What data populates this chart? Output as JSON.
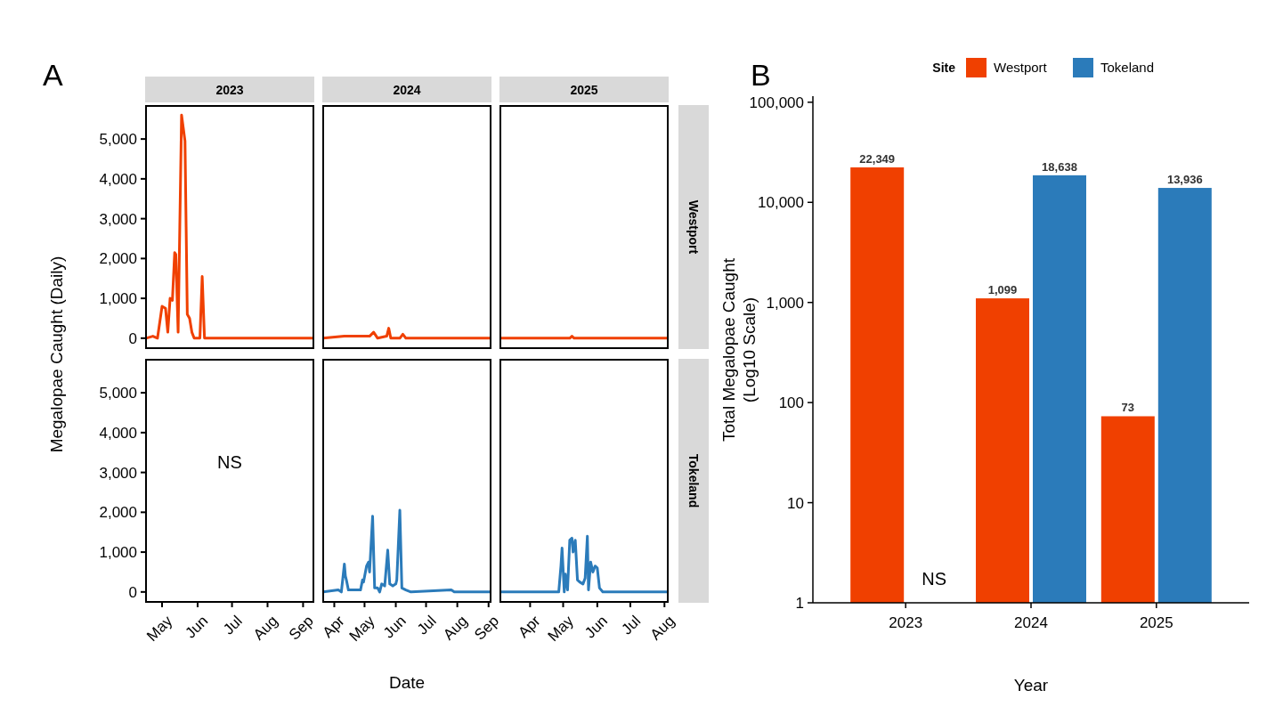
{
  "chart_data": [
    {
      "type": "line",
      "title": "2023",
      "ylabel": "Megalopae Caught (Daily)",
      "annotations": [
        "A"
      ],
      "xlim": [
        "2023-04-17",
        "2023-09-10"
      ],
      "ylim": [
        -250,
        5830
      ],
      "yticks": [
        0,
        {
          "value": 1000,
          "label": "1,000"
        },
        {
          "value": 2000,
          "label": "2,000"
        },
        {
          "value": 3000,
          "label": "3,000"
        },
        {
          "value": 4000,
          "label": "4,000"
        },
        {
          "value": 5000,
          "label": "5,000"
        }
      ],
      "tick_labels": "y",
      "x": [
        "2023-04-17",
        "2023-04-23",
        "2023-04-27",
        "2023-05-01",
        "2023-05-04",
        "2023-05-06",
        "2023-05-08",
        "2023-05-10",
        "2023-05-12",
        "2023-05-13",
        "2023-05-15",
        "2023-05-18",
        "2023-05-21",
        "2023-05-23",
        "2023-05-25",
        "2023-05-27",
        "2023-05-29",
        "2023-06-03",
        "2023-06-05",
        "2023-06-07",
        "2023-09-10"
      ],
      "series": [
        {
          "color": "#f04000",
          "values": [
            0,
            50,
            0,
            800,
            750,
            150,
            1000,
            950,
            2150,
            2100,
            150,
            5600,
            4950,
            600,
            500,
            150,
            0,
            0,
            1550,
            0,
            0
          ]
        }
      ]
    },
    {
      "type": "line",
      "title": "2024",
      "xlim": [
        "2024-03-21",
        "2024-09-03"
      ],
      "ylim": [
        -250,
        5830
      ],
      "tick_labels": false,
      "x": [
        "2024-03-21",
        "2024-04-11",
        "2024-05-06",
        "2024-05-10",
        "2024-05-14",
        "2024-05-23",
        "2024-05-25",
        "2024-05-27",
        "2024-06-05",
        "2024-06-08",
        "2024-06-11",
        "2024-09-03"
      ],
      "series": [
        {
          "color": "#f04000",
          "values": [
            0,
            50,
            50,
            150,
            0,
            50,
            250,
            0,
            0,
            100,
            0,
            0
          ]
        }
      ]
    },
    {
      "type": "line",
      "title": "2025",
      "xlim": [
        "2025-03-05",
        "2025-08-04"
      ],
      "ylim": [
        -250,
        5830
      ],
      "tick_labels": false,
      "x": [
        "2025-03-05",
        "2025-05-07",
        "2025-05-09",
        "2025-05-11",
        "2025-08-04"
      ],
      "series": [
        {
          "name": "Westport",
          "color": "#f04000",
          "values": [
            0,
            0,
            50,
            0,
            0
          ]
        }
      ]
    },
    {
      "type": "line",
      "annotations": [
        "NS"
      ],
      "xlim": [
        "2023-04-17",
        "2023-09-10"
      ],
      "ylim": [
        -250,
        5830
      ],
      "xticks": [
        {
          "value": "2023-05-01",
          "label": "May"
        },
        {
          "value": "2023-06-01",
          "label": "Jun"
        },
        {
          "value": "2023-07-01",
          "label": "Jul"
        },
        {
          "value": "2023-08-01",
          "label": "Aug"
        },
        {
          "value": "2023-09-01",
          "label": "Sep"
        }
      ],
      "yticks": [
        0,
        {
          "value": 1000,
          "label": "1,000"
        },
        {
          "value": 2000,
          "label": "2,000"
        },
        {
          "value": 3000,
          "label": "3,000"
        },
        {
          "value": 4000,
          "label": "4,000"
        },
        {
          "value": 5000,
          "label": "5,000"
        }
      ]
    },
    {
      "type": "line",
      "xlabel": "Date",
      "xlim": [
        "2024-03-21",
        "2024-09-03"
      ],
      "ylim": [
        -250,
        5830
      ],
      "tick_labels": "x",
      "xticks": [
        {
          "value": "2024-04-01",
          "label": "Apr"
        },
        {
          "value": "2024-05-01",
          "label": "May"
        },
        {
          "value": "2024-06-01",
          "label": "Jun"
        },
        {
          "value": "2024-07-01",
          "label": "Jul"
        },
        {
          "value": "2024-08-01",
          "label": "Aug"
        },
        {
          "value": "2024-09-01",
          "label": "Sep"
        }
      ],
      "x": [
        "2024-03-21",
        "2024-04-05",
        "2024-04-08",
        "2024-04-11",
        "2024-04-12",
        "2024-04-13",
        "2024-04-15",
        "2024-04-27",
        "2024-04-29",
        "2024-04-30",
        "2024-05-03",
        "2024-05-05",
        "2024-05-06",
        "2024-05-09",
        "2024-05-11",
        "2024-05-14",
        "2024-05-16",
        "2024-05-18",
        "2024-05-21",
        "2024-05-24",
        "2024-05-26",
        "2024-05-29",
        "2024-06-01",
        "2024-06-02",
        "2024-06-05",
        "2024-06-07",
        "2024-06-11",
        "2024-06-16",
        "2024-07-26",
        "2024-07-29",
        "2024-09-03"
      ],
      "series": [
        {
          "color": "#2b7bba",
          "values": [
            0,
            50,
            0,
            700,
            400,
            300,
            50,
            50,
            300,
            250,
            650,
            750,
            500,
            1900,
            100,
            100,
            0,
            200,
            150,
            1050,
            200,
            150,
            200,
            300,
            2050,
            100,
            50,
            0,
            50,
            0,
            0
          ]
        }
      ]
    },
    {
      "type": "line",
      "xlim": [
        "2025-03-05",
        "2025-08-04"
      ],
      "ylim": [
        -250,
        5830
      ],
      "tick_labels": "x",
      "xticks": [
        {
          "value": "2025-04-01",
          "label": "Apr"
        },
        {
          "value": "2025-05-01",
          "label": "May"
        },
        {
          "value": "2025-06-01",
          "label": "Jun"
        },
        {
          "value": "2025-07-01",
          "label": "Jul"
        },
        {
          "value": "2025-08-01",
          "label": "Aug"
        }
      ],
      "x": [
        "2025-03-05",
        "2025-04-16",
        "2025-04-27",
        "2025-04-29",
        "2025-04-30",
        "2025-05-02",
        "2025-05-03",
        "2025-05-05",
        "2025-05-07",
        "2025-05-09",
        "2025-05-10",
        "2025-05-12",
        "2025-05-14",
        "2025-05-16",
        "2025-05-19",
        "2025-05-21",
        "2025-05-23",
        "2025-05-24",
        "2025-05-26",
        "2025-05-28",
        "2025-05-30",
        "2025-06-01",
        "2025-06-03",
        "2025-06-06",
        "2025-08-04"
      ],
      "series": [
        {
          "name": "Tokeland",
          "color": "#2b7bba",
          "values": [
            0,
            0,
            0,
            650,
            1100,
            0,
            450,
            50,
            1300,
            1350,
            1000,
            1300,
            300,
            250,
            200,
            350,
            1400,
            50,
            750,
            500,
            650,
            600,
            100,
            0,
            0
          ]
        }
      ]
    },
    {
      "type": "bar",
      "xlabel": "Year",
      "ylabel": "Total Megalopae Caught\n(Log10 Scale)",
      "legend_title": "Site",
      "legend": "top",
      "log": true,
      "annotations": [
        "B",
        {
          "text": "NS",
          "x": "2023",
          "y": 1.5
        }
      ],
      "categories": [
        "2023",
        "2024",
        "2025"
      ],
      "ylim": [
        1,
        115000
      ],
      "yticks": [
        1,
        10,
        100,
        {
          "value": 1000,
          "label": "1,000"
        },
        {
          "value": 10000,
          "label": "10,000"
        },
        {
          "value": 100000,
          "label": "100,000"
        }
      ],
      "series": [
        {
          "name": "Westport",
          "color": "#f04000",
          "values": [
            22349,
            1099,
            73
          ],
          "value_labels": [
            "22,349",
            "1,099",
            "73"
          ]
        },
        {
          "name": "Tokeland",
          "color": "#2b7bba",
          "values": [
            null,
            18638,
            13936
          ],
          "value_labels": [
            null,
            "18,638",
            "13,936"
          ]
        }
      ]
    }
  ]
}
